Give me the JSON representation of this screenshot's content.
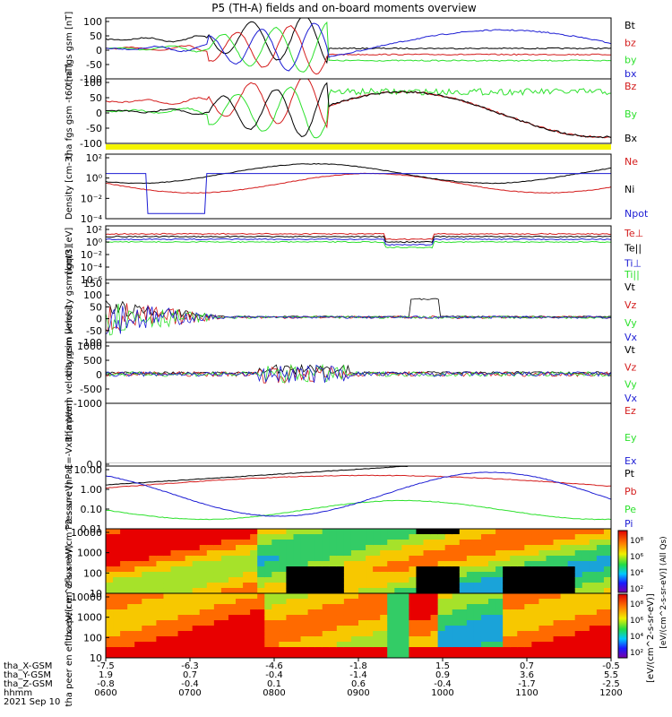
{
  "title": "P5 (TH-A) fields and on-board moments overview",
  "chart_data": [
    {
      "type": "line",
      "id": "p1",
      "ylabel": "tha fgs gsm [nT]",
      "ylim": [
        -100,
        100
      ],
      "ticks": [
        "100",
        "50",
        "0",
        "-50",
        "-100"
      ],
      "legend": [
        {
          "text": "Bt",
          "color": "#000000"
        },
        {
          "text": "bz",
          "color": "#d41c1c"
        },
        {
          "text": "by",
          "color": "#2ee12e"
        },
        {
          "text": "bx",
          "color": "#1c1cd4"
        }
      ]
    },
    {
      "type": "line",
      "id": "p2",
      "ylabel": "tha fgs gsm -t60 [nT]",
      "ylim": [
        -100,
        100
      ],
      "ticks": [
        "100",
        "50",
        "0",
        "-50",
        "-100"
      ],
      "legend": [
        {
          "text": "Bz",
          "color": "#d41c1c"
        },
        {
          "text": "By",
          "color": "#2ee12e"
        },
        {
          "text": "Bx",
          "color": "#000000"
        }
      ]
    },
    {
      "type": "line",
      "id": "p3",
      "ylabel": "Density [cm-3]",
      "scale": "log",
      "ticks": [
        "10²",
        "10⁰",
        "10⁻²",
        "10⁻⁴"
      ],
      "legend": [
        {
          "text": "Ne",
          "color": "#d41c1c"
        },
        {
          "text": "Ni",
          "color": "#000000"
        },
        {
          "text": "Npot",
          "color": "#1c1cd4"
        }
      ]
    },
    {
      "type": "line",
      "id": "p4",
      "ylabel": "mgqt3 [eV]",
      "scale": "log",
      "ticks": [
        "10²",
        "10⁰",
        "10⁻²",
        "10⁻⁴",
        "10⁻⁶"
      ],
      "legend": [
        {
          "text": "Te⊥",
          "color": "#d41c1c"
        },
        {
          "text": "Te||",
          "color": "#000000"
        },
        {
          "text": "Ti⊥",
          "color": "#1c1cd4"
        },
        {
          "text": "Ti||",
          "color": "#2ee12e"
        }
      ]
    },
    {
      "type": "line",
      "id": "p5",
      "ylabel": "tha peim velocity gsm [km/s]",
      "ylim": [
        -100,
        150
      ],
      "ticks": [
        "150",
        "100",
        "50",
        "0",
        "-50",
        "-100"
      ],
      "legend": [
        {
          "text": "Vt",
          "color": "#000000"
        },
        {
          "text": "Vz",
          "color": "#d41c1c"
        },
        {
          "text": "Vy",
          "color": "#2ee12e"
        },
        {
          "text": "Vx",
          "color": "#1c1cd4"
        }
      ]
    },
    {
      "type": "line",
      "id": "p6",
      "ylabel": "tha peem velocity gsm [km/s]",
      "ylim": [
        -1000,
        1000
      ],
      "ticks": [
        "1000",
        "500",
        "0",
        "-500",
        "-1000"
      ],
      "legend": [
        {
          "text": "Vt",
          "color": "#000000"
        },
        {
          "text": "Vz",
          "color": "#d41c1c"
        },
        {
          "text": "Vy",
          "color": "#2ee12e"
        },
        {
          "text": "Vx",
          "color": "#1c1cd4"
        }
      ]
    },
    {
      "type": "line",
      "id": "p7",
      "ylabel": "E=-VxB [mV/m]",
      "ticks": [
        "0.0"
      ],
      "legend": [
        {
          "text": "Ez",
          "color": "#d41c1c"
        },
        {
          "text": "Ey",
          "color": "#2ee12e"
        },
        {
          "text": "Ex",
          "color": "#1c1cd4"
        }
      ]
    },
    {
      "type": "line",
      "id": "p8",
      "ylabel": "Pressure [nPa]",
      "scale": "log",
      "ticks": [
        "10.00",
        "1.00",
        "0.10",
        "0.01"
      ],
      "legend": [
        {
          "text": "Pt",
          "color": "#000000"
        },
        {
          "text": "Pb",
          "color": "#d41c1c"
        },
        {
          "text": "Pe",
          "color": "#2ee12e"
        },
        {
          "text": "Pi",
          "color": "#1c1cd4"
        }
      ]
    },
    {
      "type": "heatmap",
      "id": "p9",
      "ylabel": "tha peir en eflux eV/(cm^2-s-sr-eV)",
      "ticks": [
        "10000",
        "1000",
        "100",
        "10"
      ]
    },
    {
      "type": "heatmap",
      "id": "p10",
      "ylabel": "tha peer en eflux eV/(cm^2-s-sr-eV)",
      "ticks": [
        "10000",
        "1000",
        "100",
        "10"
      ]
    }
  ],
  "colorbar": {
    "ticks": [
      "10⁸",
      "10⁶",
      "10⁴",
      "10²"
    ],
    "label_upper": "[eV/(cm^2-s-sr-eV)] (All Qs)",
    "label_lower": "[eV/(cm^2-s-sr-eV)]"
  },
  "xaxis": {
    "rows": [
      {
        "label": "tha_X-GSM",
        "values": [
          "-7.5",
          "-6.3",
          "-4.6",
          "-1.8",
          "1.5",
          "0.7",
          "-0.5"
        ]
      },
      {
        "label": "tha_Y-GSM",
        "values": [
          "1.9",
          "0.7",
          "-0.4",
          "-1.4",
          "0.9",
          "3.6",
          "5.5"
        ]
      },
      {
        "label": "tha_Z-GSM",
        "values": [
          "-0.8",
          "-0.4",
          "0.1",
          "0.6",
          "-0.4",
          "-1.7",
          "-2.5"
        ]
      },
      {
        "label": "hhmm",
        "values": [
          "0600",
          "0700",
          "0800",
          "0900",
          "1000",
          "1100",
          "1200"
        ]
      }
    ],
    "date": "2021 Sep 10"
  }
}
